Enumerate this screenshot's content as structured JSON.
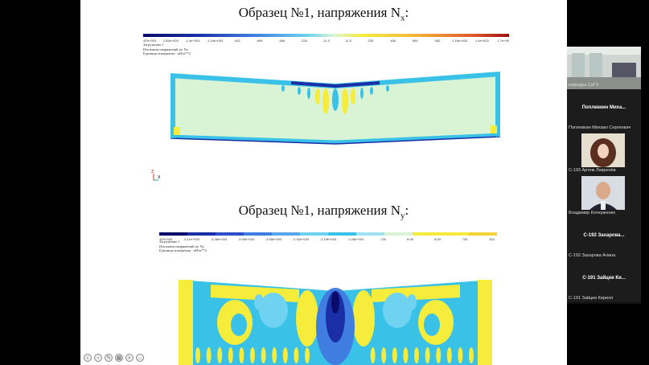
{
  "slide1": {
    "title_main": "Образец №1, напряжения N",
    "title_sub": "x",
    "legend_values": [
      "-3.87e+003",
      "-1.65e+003",
      "-1.4e+003",
      "-1.16e+003",
      "-932",
      "-699",
      "-466",
      "-233",
      "-11.5",
      "11.5",
      "233",
      "466",
      "699",
      "932",
      "1.16e+003",
      "1.4e+003",
      "1.7e+003"
    ],
    "meta_lines": [
      "Загружение 1",
      "Изолинии напряжений по Nx",
      "Единицы измерения - кН/м**2"
    ]
  },
  "slide2": {
    "title_main": "Образец №1, напряжения N",
    "title_sub": "y",
    "legend_values": [
      "-3.87e+003",
      "-3.11e+003",
      "-4.38e+003",
      "-3.93e+003",
      "-3.65e+003",
      "-2.92e+003",
      "-2.19e+003",
      "-1.46e+003",
      "-730",
      "8.08",
      "8.09",
      "730",
      "810"
    ],
    "meta_lines": [
      "Загружение 1",
      "Изолинии напряжений по Ny",
      "Единицы измерения - кН/м**2"
    ]
  },
  "axis_labels": {
    "z": "z",
    "x": "x"
  },
  "participants": [
    {
      "type": "video",
      "name": "кафедра СиГХ"
    },
    {
      "type": "text",
      "big": "Поплевкин Миха...",
      "name": "Поплевкин Михаил Сергеевич"
    },
    {
      "type": "video",
      "name": "С-193 Артем Лавренёв"
    },
    {
      "type": "video",
      "name": "Владимир Кочерженко"
    },
    {
      "type": "text",
      "big": "С-192 Захарова...",
      "name": "С-192 Захарова Алина"
    },
    {
      "type": "text",
      "big": "С-191 Зайцев Ки...",
      "name": "С-191 Зайцев Кирилл"
    }
  ],
  "controls": [
    "prev",
    "next",
    "pen",
    "window",
    "zoom",
    "more"
  ],
  "colors": {
    "slide_bg": "#ffffff",
    "outer_bg": "#000000",
    "yellow": "#f5ec3c",
    "cyan": "#39c1e8",
    "lightgreen": "#d9f4d4",
    "darkblue": "#1a2fa6"
  }
}
